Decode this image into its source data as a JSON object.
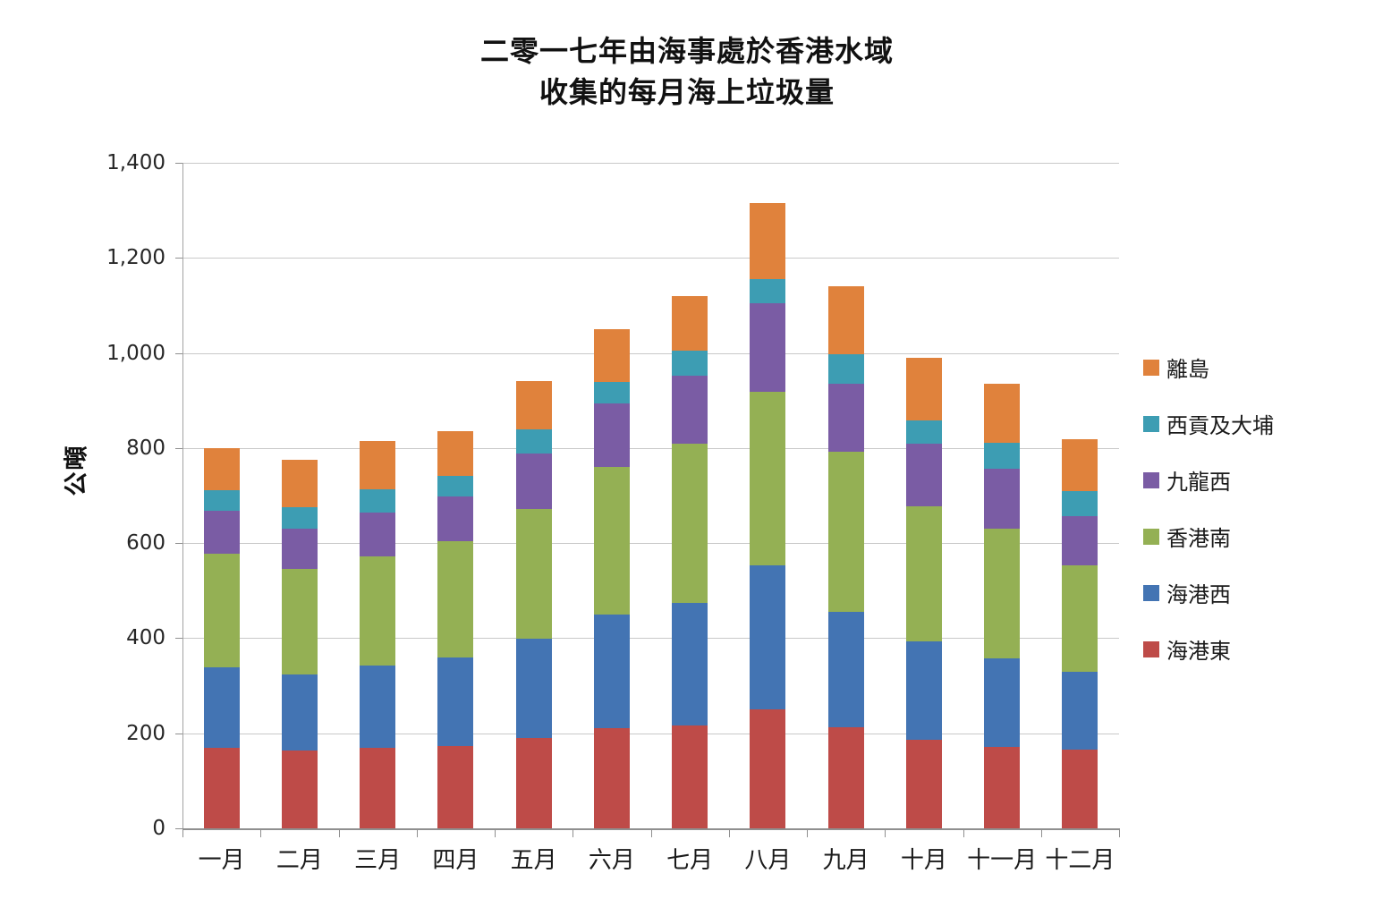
{
  "title": {
    "line1": "二零一七年由海事處於香港水域",
    "line2": "收集的每月海上垃圾量"
  },
  "y_axis": {
    "label": "公噸",
    "ticks": [
      "0",
      "200",
      "400",
      "600",
      "800",
      "1,000",
      "1,200",
      "1,400"
    ],
    "min": 0,
    "max": 1400,
    "step": 200
  },
  "colors": {
    "grid": "#c9c9c9",
    "axis": "#8f8f8f"
  },
  "chart_data": {
    "type": "bar",
    "stacked": true,
    "title": "二零一七年由海事處於香港水域 收集的每月海上垃圾量",
    "ylabel": "公噸",
    "ylim": [
      0,
      1400
    ],
    "grid": true,
    "legend_position": "right",
    "legend_order": "top-to-bottom reverse of stack",
    "categories": [
      "一月",
      "二月",
      "三月",
      "四月",
      "五月",
      "六月",
      "七月",
      "八月",
      "九月",
      "十月",
      "十一月",
      "十二月"
    ],
    "series": [
      {
        "name": "海港東",
        "color": "#be4b48",
        "values": [
          170,
          163,
          169,
          174,
          190,
          210,
          217,
          250,
          212,
          187,
          171,
          165
        ]
      },
      {
        "name": "海港西",
        "color": "#4374b3",
        "values": [
          168,
          160,
          173,
          186,
          209,
          240,
          258,
          303,
          243,
          206,
          187,
          165
        ]
      },
      {
        "name": "香港南",
        "color": "#94b054",
        "values": [
          240,
          222,
          231,
          245,
          273,
          310,
          335,
          366,
          337,
          285,
          272,
          223
        ]
      },
      {
        "name": "九龍西",
        "color": "#7a5ca4",
        "values": [
          91,
          85,
          91,
          93,
          116,
          133,
          142,
          186,
          143,
          132,
          126,
          104
        ]
      },
      {
        "name": "西貢及大埔",
        "color": "#3d9db3",
        "values": [
          42,
          46,
          49,
          44,
          51,
          47,
          53,
          51,
          62,
          48,
          56,
          53
        ]
      },
      {
        "name": "離島",
        "color": "#e0823c",
        "values": [
          89,
          100,
          101,
          94,
          101,
          110,
          115,
          159,
          143,
          132,
          123,
          108
        ]
      }
    ],
    "totals": [
      800,
      776,
      814,
      836,
      940,
      1050,
      1120,
      1315,
      1140,
      990,
      935,
      818
    ]
  }
}
